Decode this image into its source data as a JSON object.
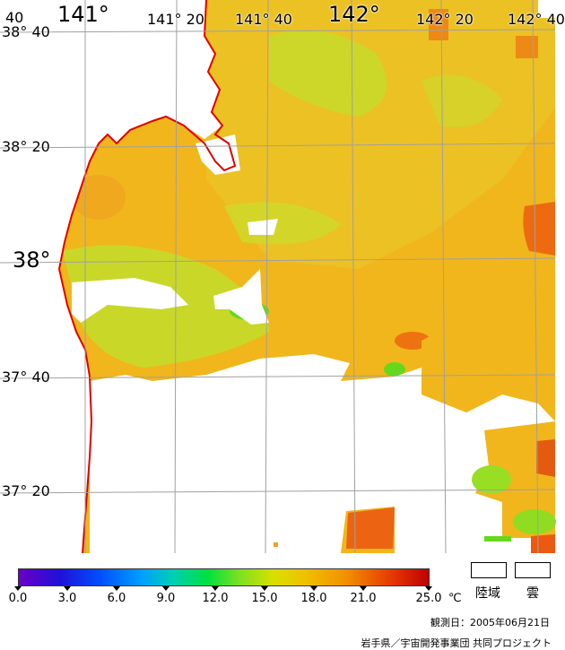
{
  "map": {
    "lon_labels": [
      "141°",
      "141° 20",
      "141° 40",
      "142°",
      "142° 20",
      "142° 40"
    ],
    "lat_labels": [
      "38° 40",
      "38° 20",
      "38°",
      "37° 40",
      "37° 20"
    ],
    "corner_label": "40"
  },
  "colorbar": {
    "ticks": [
      "0.0",
      "3.0",
      "6.0",
      "9.0",
      "12.0",
      "15.0",
      "18.0",
      "21.0",
      "25.0"
    ],
    "unit": "℃"
  },
  "legend": {
    "land_label": "陸域",
    "cloud_label": "雲"
  },
  "observation_date": "観測日：2005年06月21日",
  "credit": "岩手県／宇宙開発事業団 共同プロジェクト",
  "colors": {
    "coastline": "#e00000",
    "grid": "#a0a0a0",
    "sst_base": "#f0b818",
    "warm_patch": "#ee6a10",
    "cool_patch": "#a8e02a",
    "land": "#ffffff"
  }
}
